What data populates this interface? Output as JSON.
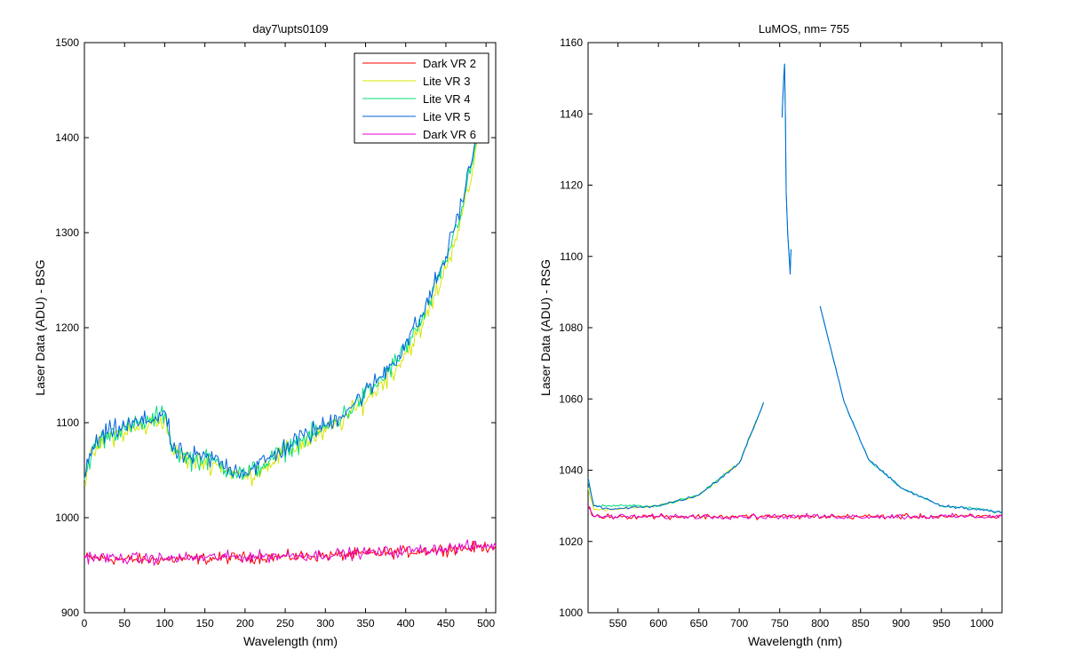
{
  "colors": {
    "Dark VR 2": "#ff0000",
    "Lite VR 3": "#d8e600",
    "Lite VR 4": "#00e07a",
    "Lite VR 5": "#0060e0",
    "Dark VR 6": "#e000d0"
  },
  "chart_data": [
    {
      "type": "line",
      "title": "day7\\upts0109",
      "xlabel": "Wavelength (nm)",
      "ylabel": "Laser Data (ADU) - BSG",
      "xlim": [
        0,
        512
      ],
      "ylim": [
        900,
        1500
      ],
      "xticks": [
        0,
        50,
        100,
        150,
        200,
        250,
        300,
        350,
        400,
        450,
        500
      ],
      "yticks": [
        900,
        1000,
        1100,
        1200,
        1300,
        1400,
        1500
      ],
      "legend": {
        "placement": "top-right",
        "entries": [
          "Dark VR 2",
          "Lite VR 3",
          "Lite VR 4",
          "Lite VR 5",
          "Dark VR 6"
        ]
      },
      "series": [
        {
          "name": "Dark VR 2",
          "x": [
            0,
            50,
            100,
            150,
            200,
            250,
            300,
            350,
            400,
            450,
            512
          ],
          "y": [
            958,
            956,
            956,
            957,
            958,
            959,
            960,
            962,
            964,
            967,
            970
          ]
        },
        {
          "name": "Lite VR 3",
          "x": [
            0,
            10,
            30,
            50,
            80,
            100,
            110,
            130,
            160,
            180,
            200,
            230,
            260,
            300,
            330,
            360,
            390,
            420,
            450,
            470,
            480,
            490
          ],
          "y": [
            1035,
            1068,
            1085,
            1090,
            1097,
            1105,
            1070,
            1060,
            1058,
            1050,
            1042,
            1058,
            1073,
            1090,
            1108,
            1132,
            1160,
            1200,
            1262,
            1318,
            1350,
            1400
          ]
        },
        {
          "name": "Lite VR 4",
          "x": [
            0,
            10,
            30,
            50,
            80,
            100,
            110,
            130,
            160,
            180,
            200,
            230,
            260,
            300,
            330,
            360,
            390,
            420,
            450,
            470,
            480,
            490
          ],
          "y": [
            1040,
            1072,
            1089,
            1094,
            1101,
            1110,
            1072,
            1062,
            1060,
            1051,
            1045,
            1060,
            1077,
            1094,
            1113,
            1137,
            1166,
            1207,
            1270,
            1327,
            1362,
            1405
          ]
        },
        {
          "name": "Lite VR 5",
          "x": [
            0,
            10,
            30,
            50,
            80,
            100,
            110,
            130,
            160,
            180,
            200,
            230,
            260,
            300,
            330,
            360,
            390,
            420,
            450,
            470,
            480,
            490
          ],
          "y": [
            1042,
            1075,
            1090,
            1096,
            1102,
            1112,
            1070,
            1064,
            1062,
            1053,
            1048,
            1062,
            1080,
            1097,
            1116,
            1140,
            1170,
            1212,
            1275,
            1333,
            1368,
            1412
          ]
        },
        {
          "name": "Dark VR 6",
          "x": [
            0,
            50,
            100,
            150,
            200,
            250,
            300,
            350,
            400,
            450,
            512
          ],
          "y": [
            959,
            957,
            957,
            958,
            959,
            960,
            961,
            963,
            965,
            968,
            971
          ]
        }
      ]
    },
    {
      "type": "line",
      "title": "LuMOS, nm= 755",
      "xlabel": "Wavelength (nm)",
      "ylabel": "Laser Data (ADU) - RSG",
      "xlim": [
        513,
        1025
      ],
      "ylim": [
        1000,
        1160
      ],
      "xticks": [
        550,
        600,
        650,
        700,
        750,
        800,
        850,
        900,
        950,
        1000
      ],
      "yticks": [
        1000,
        1020,
        1040,
        1060,
        1080,
        1100,
        1120,
        1140,
        1160
      ],
      "legend": {
        "placement": "none",
        "entries": []
      },
      "series": [
        {
          "name": "Dark VR 2",
          "x": [
            513,
            520,
            1025
          ],
          "y": [
            1030,
            1027,
            1027
          ]
        },
        {
          "name": "Lite VR 3",
          "x": [
            513,
            520,
            540,
            600,
            650,
            700,
            725,
            730
          ],
          "y": [
            1035,
            1029,
            1029,
            1030,
            1033,
            1042,
            1056,
            1059
          ]
        },
        {
          "name": "Lite VR 4",
          "x": [
            513,
            520,
            540,
            600,
            650,
            700,
            725,
            730,
            730,
            753,
            754,
            755,
            756,
            757,
            758,
            760,
            763,
            764,
            785,
            800,
            830,
            860,
            900,
            950,
            1000,
            1025
          ],
          "y": [
            1037,
            1030,
            1030,
            1030,
            1033,
            1042,
            1056,
            1059,
            null,
            1139,
            1145,
            1151,
            1154,
            1140,
            1118,
            1106,
            1096,
            1102,
            null,
            1086,
            1059,
            1043,
            1035,
            1030,
            1029,
            1028
          ]
        },
        {
          "name": "Lite VR 5",
          "x": [
            513,
            520,
            540,
            600,
            650,
            700,
            725,
            730,
            730,
            753,
            754,
            755,
            756,
            757,
            758,
            760,
            763,
            764,
            785,
            800,
            830,
            860,
            900,
            950,
            1000,
            1025
          ],
          "y": [
            1038,
            1030,
            1029,
            1030,
            1033,
            1042,
            1056,
            1059,
            null,
            1139,
            1145,
            1150,
            1154,
            1140,
            1118,
            1106,
            1095,
            1102,
            null,
            1086,
            1059,
            1043,
            1035,
            1030,
            1029,
            1028
          ]
        },
        {
          "name": "Dark VR 6",
          "x": [
            513,
            520,
            1025
          ],
          "y": [
            1030,
            1027,
            1027
          ]
        }
      ]
    }
  ]
}
